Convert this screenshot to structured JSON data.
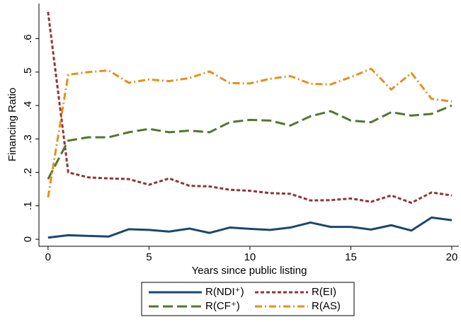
{
  "chart_data": {
    "type": "line",
    "x_label": "Years since public listing",
    "y_label": "Financing Ratio",
    "x": [
      0,
      1,
      2,
      3,
      4,
      5,
      6,
      7,
      8,
      9,
      10,
      11,
      12,
      13,
      14,
      15,
      16,
      17,
      18,
      19,
      20
    ],
    "xlim": [
      -0.45,
      20.35
    ],
    "xticks": [
      0,
      5,
      10,
      15,
      20
    ],
    "ylim": [
      -0.021,
      0.705
    ],
    "yticks": [
      0,
      {
        "value": 0.1,
        "label": ".1"
      },
      {
        "value": 0.2,
        "label": ".2"
      },
      {
        "value": 0.3,
        "label": ".3"
      },
      {
        "value": 0.4,
        "label": ".4"
      },
      {
        "value": 0.5,
        "label": ".5"
      },
      {
        "value": 0.6,
        "label": ".6"
      }
    ],
    "grid": false,
    "series": [
      {
        "name": "R(NDI⁺)",
        "color": "#1a476f",
        "dash": "solid",
        "values": [
          0.005,
          0.012,
          0.01,
          0.008,
          0.03,
          0.028,
          0.023,
          0.032,
          0.019,
          0.035,
          0.031,
          0.028,
          0.035,
          0.05,
          0.037,
          0.037,
          0.029,
          0.042,
          0.026,
          0.065,
          0.057
        ]
      },
      {
        "name": "R(EI)",
        "color": "#90353b",
        "dash": "short",
        "values": [
          0.68,
          0.2,
          0.185,
          0.182,
          0.18,
          0.163,
          0.182,
          0.16,
          0.158,
          0.148,
          0.145,
          0.138,
          0.136,
          0.116,
          0.117,
          0.122,
          0.112,
          0.131,
          0.109,
          0.14,
          0.131
        ]
      },
      {
        "name": "R(CF⁺)",
        "color": "#55752f",
        "dash": "long",
        "values": [
          0.18,
          0.295,
          0.305,
          0.305,
          0.32,
          0.33,
          0.32,
          0.325,
          0.32,
          0.35,
          0.357,
          0.355,
          0.34,
          0.368,
          0.383,
          0.355,
          0.35,
          0.38,
          0.37,
          0.375,
          0.4
        ]
      },
      {
        "name": "R(AS)",
        "color": "#e5901a",
        "dash": "dashdot",
        "values": [
          0.125,
          0.492,
          0.5,
          0.505,
          0.468,
          0.478,
          0.473,
          0.482,
          0.502,
          0.467,
          0.466,
          0.48,
          0.488,
          0.465,
          0.463,
          0.485,
          0.51,
          0.448,
          0.497,
          0.42,
          0.412
        ]
      }
    ]
  }
}
